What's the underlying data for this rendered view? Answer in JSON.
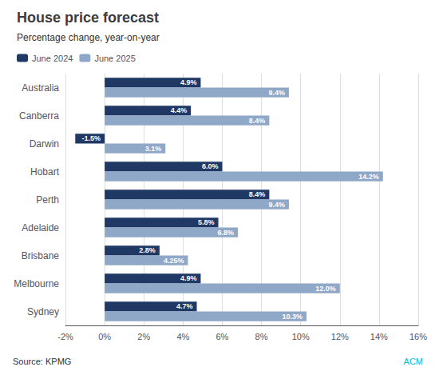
{
  "chart_data": {
    "type": "bar",
    "orientation": "horizontal",
    "title": "House price forecast",
    "subtitle": "Percentage change, year-on-year",
    "categories": [
      "Australia",
      "Canberra",
      "Darwin",
      "Hobart",
      "Perth",
      "Adelaide",
      "Brisbane",
      "Melbourne",
      "Sydney"
    ],
    "series": [
      {
        "name": "June 2024",
        "color": "#1f3864",
        "values": [
          4.9,
          4.4,
          -1.5,
          6.0,
          8.4,
          5.8,
          2.8,
          4.9,
          4.7
        ],
        "value_labels": [
          "4.9%",
          "4.4%",
          "-1.5%",
          "6.0%",
          "8.4%",
          "5.8%",
          "2.8%",
          "4.9%",
          "4.7%"
        ]
      },
      {
        "name": "June 2025",
        "color": "#8fa8c8",
        "values": [
          9.4,
          8.4,
          3.1,
          14.2,
          9.4,
          6.8,
          4.25,
          12.0,
          10.3
        ],
        "value_labels": [
          "9.4%",
          "8.4%",
          "3.1%",
          "14.2%",
          "9.4%",
          "6.8%",
          "4.25%",
          "12.0%",
          "10.3%"
        ]
      }
    ],
    "xlim": [
      -2,
      16
    ],
    "xticks": [
      {
        "value": -2,
        "label": "-2%"
      },
      {
        "value": 0,
        "label": "0%"
      },
      {
        "value": 2,
        "label": "2%"
      },
      {
        "value": 4,
        "label": "4%"
      },
      {
        "value": 6,
        "label": "6%"
      },
      {
        "value": 8,
        "label": "8%"
      },
      {
        "value": 10,
        "label": "10%"
      },
      {
        "value": 12,
        "label": "12%"
      },
      {
        "value": 14,
        "label": "14%"
      },
      {
        "value": 16,
        "label": "16%"
      }
    ],
    "grid": true,
    "legend": "upper left",
    "data_labels": true,
    "annotations": [
      {
        "text": "Source: KPMG"
      },
      {
        "text": "ACM",
        "color": "#00bcd4"
      }
    ]
  }
}
